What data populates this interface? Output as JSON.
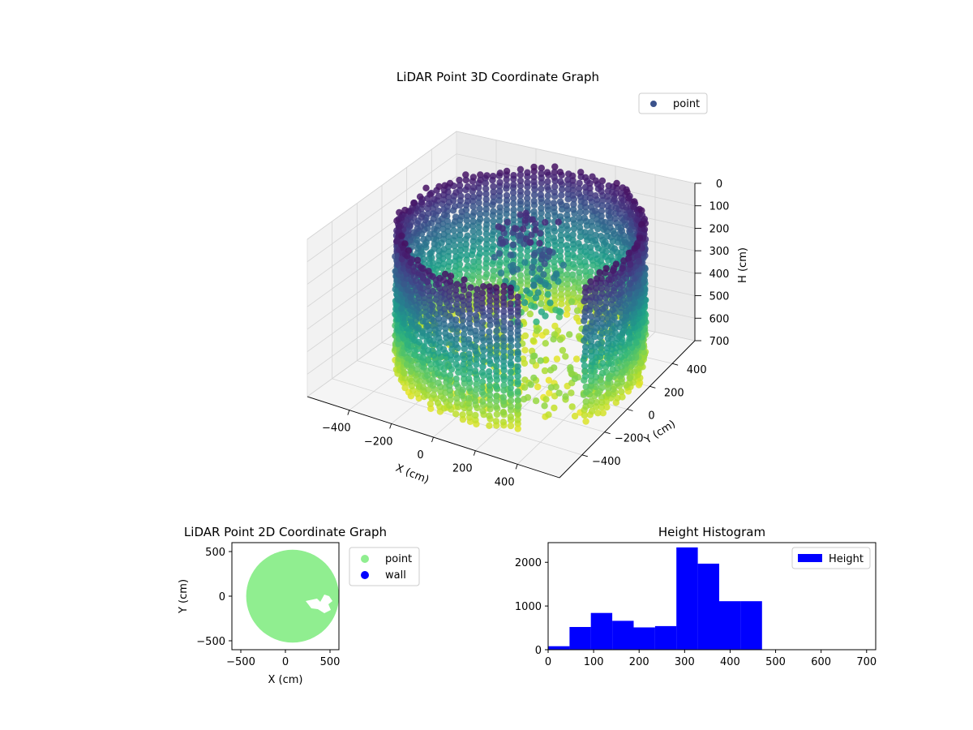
{
  "chart_data": [
    {
      "type": "scatter",
      "projection": "3d",
      "title": "LiDAR Point 3D Coordinate Graph",
      "xlabel": "X (cm)",
      "ylabel": "Y (cm)",
      "zlabel": "H (cm)",
      "x_ticks": [
        "−400",
        "−200",
        "0",
        "200",
        "400"
      ],
      "y_ticks": [
        "−400",
        "−200",
        "0",
        "200",
        "400"
      ],
      "z_ticks": [
        "0",
        "100",
        "200",
        "300",
        "400",
        "500",
        "600",
        "700"
      ],
      "xlim": [
        -600,
        600
      ],
      "ylim": [
        -600,
        600
      ],
      "zlim": [
        0,
        700
      ],
      "z_inverted": true,
      "colormap": "viridis",
      "legend": {
        "label": "point",
        "position": "top-right",
        "marker_color": "#3b528b"
      },
      "description": "cylindrical room wall of points, radius about 520 cm, height 0-700 cm, colored by height; opening toward the front-right; cluster of points near the middle"
    },
    {
      "type": "scatter",
      "title": "LiDAR Point 2D Coordinate Graph",
      "xlabel": "X (cm)",
      "ylabel": "Y (cm)",
      "x_ticks": [
        -500,
        0,
        500
      ],
      "y_ticks": [
        -500,
        0,
        500
      ],
      "xlim": [
        -600,
        600
      ],
      "ylim": [
        -600,
        600
      ],
      "series": [
        {
          "name": "point",
          "color": "#90ee90",
          "shape": "filled disc",
          "center": [
            80,
            0
          ],
          "radius": 520
        },
        {
          "name": "wall",
          "color": "#0000ff"
        }
      ],
      "legend": {
        "position": "outside-right"
      }
    },
    {
      "type": "bar",
      "subtype": "histogram",
      "title": "Height Histogram",
      "bin_edges": [
        0,
        47,
        94,
        141,
        188,
        235,
        282,
        329,
        376,
        423,
        470,
        517,
        564,
        611,
        658,
        705
      ],
      "values": [
        80,
        520,
        840,
        660,
        510,
        540,
        2340,
        1970,
        1110,
        1110,
        0,
        0,
        0,
        0,
        0
      ],
      "xlim": [
        0,
        720
      ],
      "ylim": [
        0,
        2450
      ],
      "x_ticks": [
        0,
        100,
        200,
        300,
        400,
        500,
        600,
        700
      ],
      "y_ticks": [
        0,
        1000,
        2000
      ],
      "series": [
        {
          "name": "Height",
          "color": "#0000ff"
        }
      ],
      "legend": {
        "position": "top-right"
      }
    }
  ]
}
